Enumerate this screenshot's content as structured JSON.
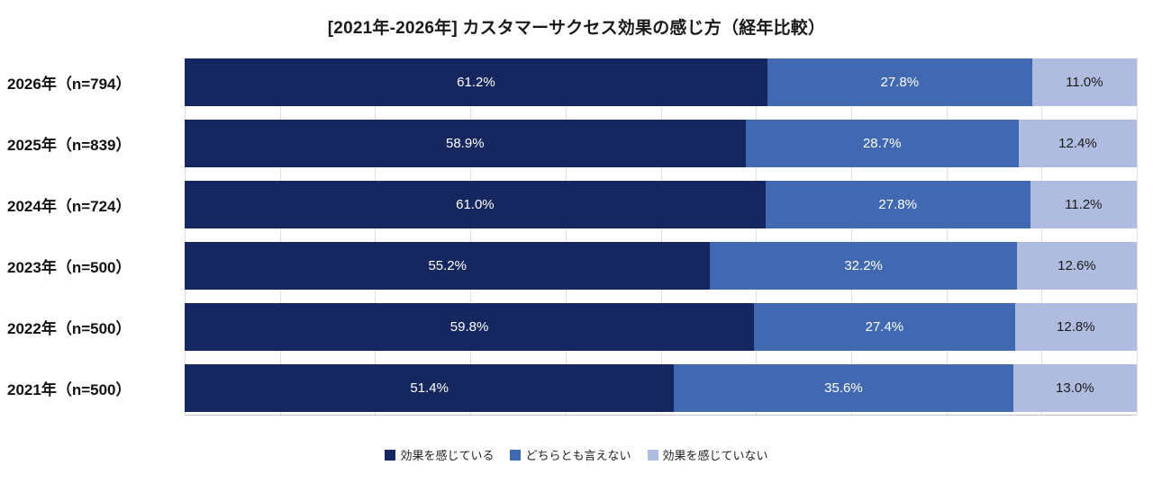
{
  "title": "[2021年-2026年] カスタマーサクセス効果の感じ方（経年比較）",
  "chart_data": {
    "type": "bar",
    "orientation": "horizontal-stacked",
    "title": "[2021年-2026年] カスタマーサクセス効果の感じ方（経年比較）",
    "categories": [
      "2026年（n=794）",
      "2025年（n=839）",
      "2024年（n=724）",
      "2023年（n=500）",
      "2022年（n=500）",
      "2021年（n=500）"
    ],
    "series": [
      {
        "name": "効果を感じている",
        "key": "positive",
        "color": "#16265e",
        "text_color": "#ffffff",
        "values": [
          61.2,
          58.9,
          61.0,
          55.2,
          59.8,
          51.4
        ]
      },
      {
        "name": "どちらとも言えない",
        "key": "neutral",
        "color": "#4169b1",
        "text_color": "#ffffff",
        "values": [
          27.8,
          28.7,
          27.8,
          32.2,
          27.4,
          35.6
        ]
      },
      {
        "name": "効果を感じていない",
        "key": "negative",
        "color": "#afbcdf",
        "text_color": "#1a1a1a",
        "values": [
          11.0,
          12.4,
          11.2,
          12.6,
          12.8,
          13.0
        ]
      }
    ],
    "xlim": [
      0,
      100
    ],
    "grid": true,
    "gridline_step": 10,
    "legend_position": "bottom",
    "value_suffix": "%"
  }
}
